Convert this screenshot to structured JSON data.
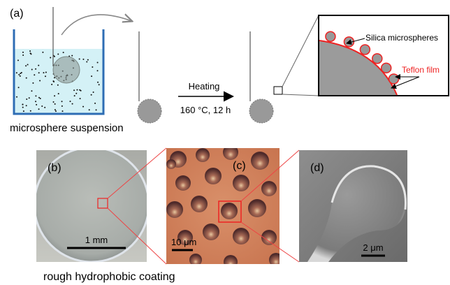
{
  "panel_a": {
    "label": "(a)",
    "suspension_caption": "microsphere suspension",
    "step_label": "Heating",
    "step_conditions": "160 °C, 12 h",
    "inset_sphere_label": "Silica microspheres",
    "inset_film_label": "Teflon film"
  },
  "panel_b": {
    "label": "(b)",
    "scale_bar": "1 mm"
  },
  "panel_c": {
    "label": "(c)",
    "scale_bar": "10 μm"
  },
  "panel_d": {
    "label": "(d)",
    "scale_bar": "2 μm"
  },
  "caption": "rough hydrophobic coating"
}
